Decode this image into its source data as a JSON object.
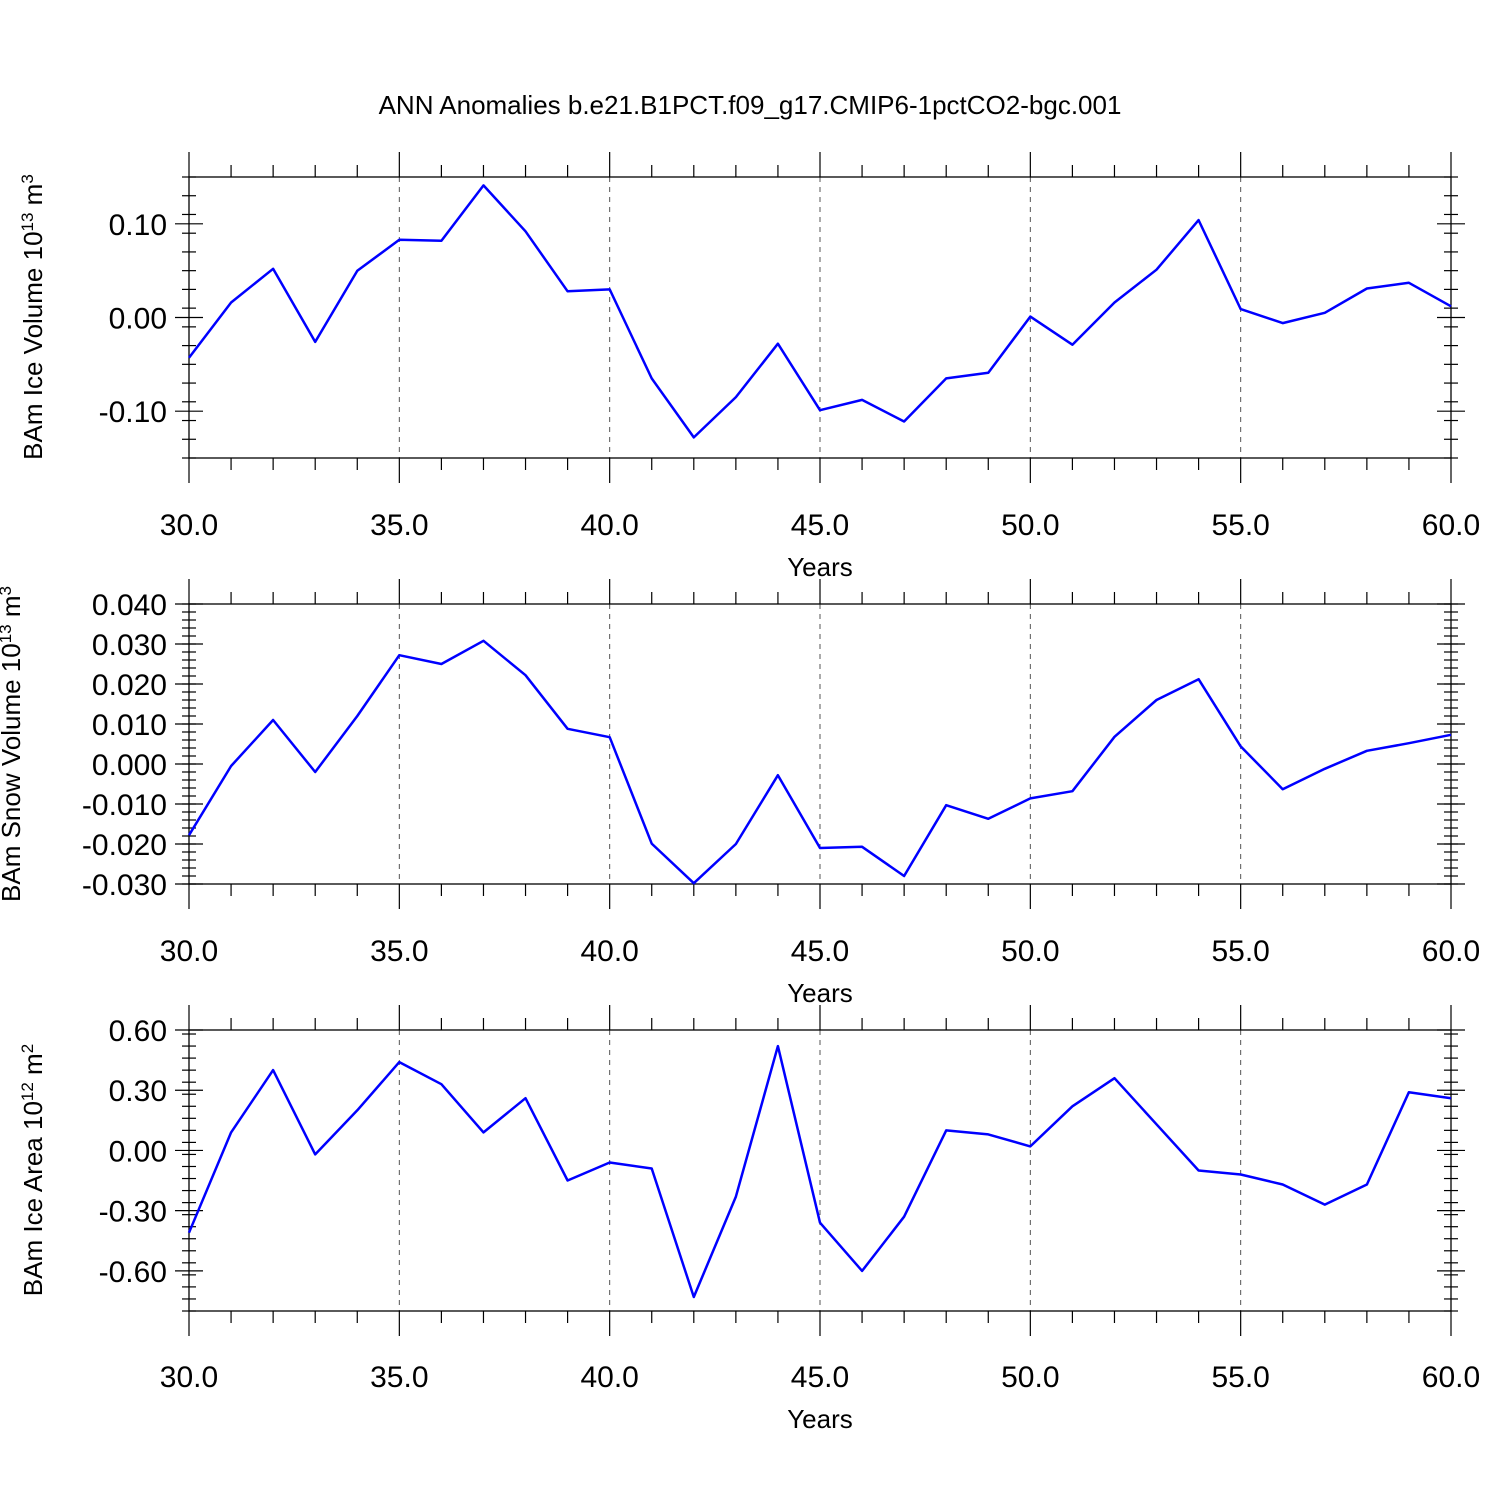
{
  "figure": {
    "title": "ANN Anomalies b.e21.B1PCT.f09_g17.CMIP6-1pctCO2-bgc.001"
  },
  "colors": {
    "line": "#0000ff",
    "axes": "#000000",
    "grid": "#555555"
  },
  "chart_data": [
    {
      "type": "line",
      "xlabel": "Years",
      "ylabel": "BAm Ice Volume 10",
      "ylabel_exp": "13",
      "ylabel_unit": " m",
      "ylabel_unit_exp": "3",
      "xlim": [
        30,
        60
      ],
      "ylim": [
        -0.15,
        0.15
      ],
      "xticks": [
        30,
        35,
        40,
        45,
        50,
        55,
        60
      ],
      "xtick_labels": [
        "30.0",
        "35.0",
        "40.0",
        "45.0",
        "50.0",
        "55.0",
        "60.0"
      ],
      "yticks": [
        -0.1,
        0.0,
        0.1
      ],
      "ytick_labels": [
        "-0.10",
        "0.00",
        "0.10"
      ],
      "y_minor_step": 0.02,
      "grid": "vertical dashed at major x ticks",
      "x": [
        30,
        31,
        32,
        33,
        34,
        35,
        36,
        37,
        38,
        39,
        40,
        41,
        42,
        43,
        44,
        45,
        46,
        47,
        48,
        49,
        50,
        51,
        52,
        53,
        54,
        55,
        56,
        57,
        58,
        59,
        60
      ],
      "series": [
        {
          "values": [
            -0.043,
            0.016,
            0.052,
            -0.026,
            0.05,
            0.083,
            0.082,
            0.141,
            0.092,
            0.028,
            0.03,
            -0.065,
            -0.128,
            -0.085,
            -0.028,
            -0.099,
            -0.088,
            -0.111,
            -0.065,
            -0.059,
            0.001,
            -0.029,
            0.016,
            0.051,
            0.104,
            0.009,
            -0.006,
            0.005,
            0.031,
            0.037,
            0.012
          ]
        }
      ]
    },
    {
      "type": "line",
      "xlabel": "Years",
      "ylabel": "BAm Snow Volume 10",
      "ylabel_exp": "13",
      "ylabel_unit": " m",
      "ylabel_unit_exp": "3",
      "xlim": [
        30,
        60
      ],
      "ylim": [
        -0.03,
        0.04
      ],
      "xticks": [
        30,
        35,
        40,
        45,
        50,
        55,
        60
      ],
      "xtick_labels": [
        "30.0",
        "35.0",
        "40.0",
        "45.0",
        "50.0",
        "55.0",
        "60.0"
      ],
      "yticks": [
        -0.03,
        -0.02,
        -0.01,
        0.0,
        0.01,
        0.02,
        0.03,
        0.04
      ],
      "ytick_labels": [
        "-0.030",
        "-0.020",
        "-0.010",
        "0.000",
        "0.010",
        "0.020",
        "0.030",
        "0.040"
      ],
      "y_minor_step": 0.002,
      "grid": "vertical dashed at major x ticks",
      "x": [
        30,
        31,
        32,
        33,
        34,
        35,
        36,
        37,
        38,
        39,
        40,
        41,
        42,
        43,
        44,
        45,
        46,
        47,
        48,
        49,
        50,
        51,
        52,
        53,
        54,
        55,
        56,
        57,
        58,
        59,
        60
      ],
      "series": [
        {
          "values": [
            -0.0178,
            -0.0005,
            0.011,
            -0.002,
            0.012,
            0.0272,
            0.025,
            0.0308,
            0.0222,
            0.0088,
            0.0067,
            -0.0199,
            -0.0298,
            -0.02,
            -0.0028,
            -0.021,
            -0.0207,
            -0.028,
            -0.0103,
            -0.0137,
            -0.0086,
            -0.0068,
            0.0068,
            0.016,
            0.0212,
            0.0044,
            -0.0063,
            -0.0012,
            0.0033,
            0.0052,
            0.0073
          ]
        }
      ]
    },
    {
      "type": "line",
      "xlabel": "Years",
      "ylabel": "BAm Ice Area 10",
      "ylabel_exp": "12",
      "ylabel_unit": " m",
      "ylabel_unit_exp": "2",
      "xlim": [
        30,
        60
      ],
      "ylim": [
        -0.8,
        0.6
      ],
      "xticks": [
        30,
        35,
        40,
        45,
        50,
        55,
        60
      ],
      "xtick_labels": [
        "30.0",
        "35.0",
        "40.0",
        "45.0",
        "50.0",
        "55.0",
        "60.0"
      ],
      "yticks": [
        -0.6,
        -0.3,
        0.0,
        0.3,
        0.6
      ],
      "ytick_labels": [
        "-0.60",
        "-0.30",
        "0.00",
        "0.30",
        "0.60"
      ],
      "y_minor_step": 0.06,
      "grid": "vertical dashed at major x ticks",
      "x": [
        30,
        31,
        32,
        33,
        34,
        35,
        36,
        37,
        38,
        39,
        40,
        41,
        42,
        43,
        44,
        45,
        46,
        47,
        48,
        49,
        50,
        51,
        52,
        53,
        54,
        55,
        56,
        57,
        58,
        59,
        60
      ],
      "series": [
        {
          "values": [
            -0.41,
            0.09,
            0.4,
            -0.02,
            0.2,
            0.44,
            0.33,
            0.09,
            0.26,
            -0.15,
            -0.06,
            -0.09,
            -0.73,
            -0.23,
            0.52,
            -0.36,
            -0.6,
            -0.33,
            0.1,
            0.08,
            0.02,
            0.22,
            0.36,
            0.13,
            -0.1,
            -0.12,
            -0.17,
            -0.27,
            -0.17,
            0.29,
            0.26
          ]
        }
      ]
    }
  ]
}
